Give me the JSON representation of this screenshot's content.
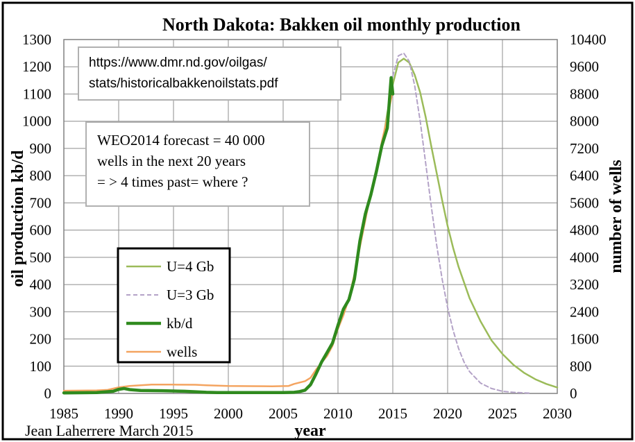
{
  "chart_data": {
    "type": "line",
    "title": "North Dakota: Bakken oil monthly production",
    "xlabel": "year",
    "ylabel": "oil production kb/d",
    "y2label": "number of wells",
    "xlim": [
      1985,
      2030
    ],
    "ylim": [
      0,
      1300
    ],
    "y2lim": [
      0,
      10400
    ],
    "x_ticks": [
      1985,
      1990,
      1995,
      2000,
      2005,
      2010,
      2015,
      2020,
      2025,
      2030
    ],
    "y_ticks": [
      0,
      100,
      200,
      300,
      400,
      500,
      600,
      700,
      800,
      900,
      1000,
      1100,
      1200,
      1300
    ],
    "y2_ticks": [
      0,
      800,
      1600,
      2400,
      3200,
      4000,
      4800,
      5600,
      6400,
      7200,
      8000,
      8800,
      9600,
      10400
    ],
    "grid": true,
    "legend_position": "left",
    "source_note": [
      "https://www.dmr.nd.gov/oilgas/",
      "stats/historicalbakkenoilstats.pdf"
    ],
    "annotation": [
      "WEO2014 forecast = 40 000",
      "wells in the next 20 years",
      "= > 4 times past= where ?"
    ],
    "credit": "Jean Laherrere March 2015",
    "series": [
      {
        "name": "U=4 Gb",
        "axis": "left",
        "color": "#9bbb59",
        "dash": "solid",
        "x": [
          2014.0,
          2014.5,
          2015.0,
          2015.5,
          2016.0,
          2016.5,
          2017.0,
          2017.5,
          2018.0,
          2018.5,
          2019.0,
          2019.5,
          2020.0,
          2020.5,
          2021.0,
          2022.0,
          2023.0,
          2024.0,
          2025.0,
          2026.0,
          2027.0,
          2028.0,
          2029.0,
          2030.0
        ],
        "values": [
          905,
          1030,
          1135,
          1215,
          1230,
          1215,
          1170,
          1105,
          1015,
          910,
          810,
          710,
          615,
          535,
          465,
          350,
          265,
          195,
          145,
          105,
          75,
          52,
          35,
          22
        ]
      },
      {
        "name": "U=3 Gb",
        "axis": "left",
        "color": "#b3a2c7",
        "dash": "dashed",
        "x": [
          2015.0,
          2015.5,
          2016.0,
          2016.5,
          2017.0,
          2017.5,
          2018.0,
          2018.5,
          2019.0,
          2019.5,
          2020.0,
          2020.5,
          2021.0,
          2021.5,
          2022.0,
          2023.0,
          2024.0,
          2025.0,
          2026.0,
          2027.0,
          2027.5
        ],
        "values": [
          1165,
          1240,
          1250,
          1220,
          1130,
          1000,
          845,
          690,
          545,
          420,
          315,
          232,
          165,
          115,
          80,
          38,
          18,
          8,
          4,
          2,
          1
        ]
      },
      {
        "name": "kb/d",
        "axis": "left",
        "color": "#2f8a1e",
        "dash": "solid",
        "x": [
          1985.0,
          1988.0,
          1989.5,
          1990.0,
          1990.5,
          1991.0,
          1992.0,
          1994.0,
          1996.0,
          1997.0,
          1998.0,
          1999.0,
          2002.0,
          2005.0,
          2006.0,
          2006.5,
          2007.0,
          2007.5,
          2008.0,
          2008.5,
          2009.0,
          2009.5,
          2010.0,
          2010.5,
          2011.0,
          2011.5,
          2012.0,
          2012.5,
          2013.0,
          2013.5,
          2014.0,
          2014.5,
          2014.85,
          2015.0
        ],
        "values": [
          2,
          3,
          8,
          15,
          18,
          14,
          11,
          10,
          8,
          6,
          4,
          3,
          3,
          3,
          4,
          7,
          12,
          32,
          72,
          115,
          150,
          185,
          250,
          310,
          345,
          420,
          560,
          660,
          730,
          815,
          910,
          975,
          1160,
          1100
        ]
      },
      {
        "name": "wells",
        "axis": "right",
        "color": "#f4a460",
        "dash": "solid",
        "x": [
          1985.0,
          1988.0,
          1989.0,
          1990.0,
          1991.0,
          1992.0,
          1993.0,
          1995.0,
          1997.0,
          1998.0,
          2000.0,
          2002.0,
          2004.0,
          2005.5,
          2006.0,
          2006.5,
          2007.0,
          2007.5,
          2008.0,
          2008.5,
          2009.0,
          2009.5,
          2010.0,
          2010.5,
          2011.0,
          2011.5,
          2012.0,
          2012.5,
          2013.0,
          2013.5,
          2014.0,
          2014.5,
          2015.0
        ],
        "values": [
          80,
          90,
          105,
          180,
          220,
          240,
          260,
          260,
          255,
          240,
          220,
          215,
          210,
          220,
          280,
          320,
          360,
          460,
          700,
          900,
          1100,
          1400,
          1900,
          2300,
          2800,
          3500,
          4300,
          5100,
          5900,
          6500,
          7400,
          8100,
          8900
        ]
      }
    ]
  }
}
